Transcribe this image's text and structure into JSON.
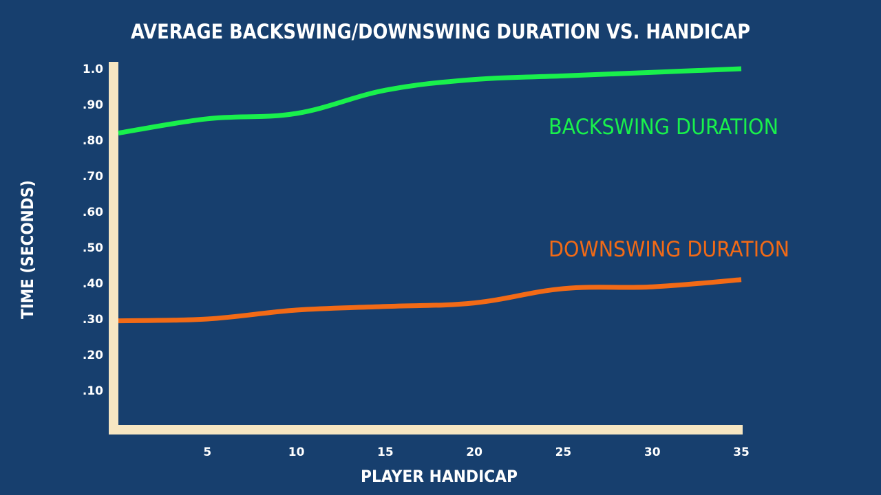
{
  "chart_data": {
    "type": "line",
    "title": "AVERAGE BACKSWING/DOWNSWING DURATION VS. HANDICAP",
    "xlabel": "PLAYER HANDICAP",
    "ylabel": "TIME (SECONDS)",
    "xlim": [
      0,
      35
    ],
    "ylim": [
      0,
      1.0
    ],
    "x_ticks": [
      {
        "value": 5,
        "label": "5"
      },
      {
        "value": 10,
        "label": "10"
      },
      {
        "value": 15,
        "label": "15"
      },
      {
        "value": 20,
        "label": "20"
      },
      {
        "value": 25,
        "label": "25"
      },
      {
        "value": 30,
        "label": "30"
      },
      {
        "value": 35,
        "label": "35"
      }
    ],
    "y_ticks": [
      {
        "value": 0.1,
        "label": ".10"
      },
      {
        "value": 0.2,
        "label": ".20"
      },
      {
        "value": 0.3,
        "label": ".30"
      },
      {
        "value": 0.4,
        "label": ".40"
      },
      {
        "value": 0.5,
        "label": ".50"
      },
      {
        "value": 0.6,
        "label": ".60"
      },
      {
        "value": 0.7,
        "label": ".70"
      },
      {
        "value": 0.8,
        "label": ".80"
      },
      {
        "value": 0.9,
        "label": ".90"
      },
      {
        "value": 1.0,
        "label": "1.0"
      }
    ],
    "x": [
      0,
      5,
      10,
      15,
      20,
      25,
      30,
      35
    ],
    "series": [
      {
        "name": "BACKSWING DURATION",
        "color": "#19f04c",
        "values": [
          0.82,
          0.86,
          0.875,
          0.94,
          0.97,
          0.98,
          0.99,
          1.0
        ]
      },
      {
        "name": "DOWNSWING DURATION",
        "color": "#f26a16",
        "values": [
          0.295,
          0.3,
          0.325,
          0.335,
          0.345,
          0.385,
          0.39,
          0.41
        ]
      }
    ],
    "grid": false,
    "legend": "inline-right",
    "axis_color": "#f6e6c2",
    "background_color": "#173f6e"
  }
}
